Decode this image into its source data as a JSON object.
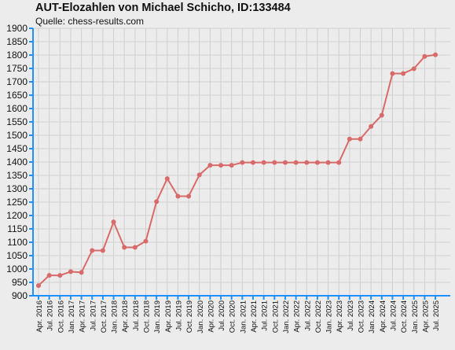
{
  "chart_data": {
    "type": "line",
    "title": "AUT-Elozahlen von Michael Schicho, ID:133484",
    "subtitle": "Quelle: chess-results.com",
    "xlabel": "",
    "ylabel": "",
    "ylim": [
      900,
      1900
    ],
    "y_ticks": [
      900,
      950,
      1000,
      1050,
      1100,
      1150,
      1200,
      1250,
      1300,
      1350,
      1400,
      1450,
      1500,
      1550,
      1600,
      1650,
      1700,
      1750,
      1800,
      1850,
      1900
    ],
    "grid": true,
    "legend": "none",
    "colors": {
      "line": "#d96a6a",
      "axis": "#1e90ff",
      "grid": "#cfcfcf",
      "background": "#ececec"
    },
    "categories": [
      "Apr. 2016",
      "Jul. 2016",
      "Oct. 2016",
      "Jan. 2017",
      "Apr. 2017",
      "Jul. 2017",
      "Oct. 2017",
      "Jan. 2018",
      "Apr. 2018",
      "Jul. 2018",
      "Oct. 2018",
      "Jan. 2019",
      "Apr. 2019",
      "Jul. 2019",
      "Oct. 2019",
      "Jan. 2020",
      "Apr. 2020",
      "Jul. 2020",
      "Oct. 2020",
      "Jan. 2021",
      "Apr. 2021",
      "Jul. 2021",
      "Oct. 2021",
      "Jan. 2022",
      "Apr. 2022",
      "Jul. 2022",
      "Oct. 2022",
      "Jan. 2023",
      "Apr. 2023",
      "Jul. 2023",
      "Oct. 2023",
      "Jan. 2024",
      "Apr. 2024",
      "Jul. 2024",
      "Oct. 2024",
      "Jan. 2025",
      "Apr. 2025",
      "Jul. 2025"
    ],
    "series": [
      {
        "values": [
          938,
          976,
          976,
          990,
          987,
          1069,
          1069,
          1176,
          1081,
          1081,
          1104,
          1252,
          1338,
          1272,
          1272,
          1352,
          1388,
          1388,
          1388,
          1398,
          1398,
          1398,
          1398,
          1398,
          1398,
          1398,
          1398,
          1398,
          1398,
          1486,
          1486,
          1533,
          1575,
          1731,
          1731,
          1749,
          1795,
          1801
        ]
      }
    ]
  }
}
